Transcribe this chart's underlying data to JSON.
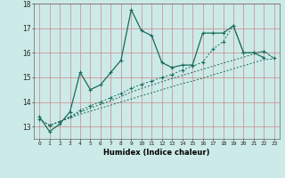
{
  "xlabel": "Humidex (Indice chaleur)",
  "bg_color": "#cceae8",
  "grid_color": "#cc8888",
  "line_color": "#1a6b5a",
  "xlim": [
    -0.5,
    23.5
  ],
  "ylim": [
    12.5,
    18.0
  ],
  "yticks": [
    13,
    14,
    15,
    16,
    17,
    18
  ],
  "xticks": [
    0,
    1,
    2,
    3,
    4,
    5,
    6,
    7,
    8,
    9,
    10,
    11,
    12,
    13,
    14,
    15,
    16,
    17,
    18,
    19,
    20,
    21,
    22,
    23
  ],
  "series": [
    {
      "x": [
        0,
        1,
        2,
        3,
        4,
        5,
        6,
        7,
        8,
        9,
        10,
        11,
        12,
        13,
        14,
        15,
        16,
        17,
        18,
        19,
        20,
        21,
        22
      ],
      "y": [
        13.4,
        12.8,
        13.1,
        13.6,
        15.2,
        14.5,
        14.7,
        15.2,
        15.7,
        17.75,
        16.9,
        16.7,
        15.6,
        15.4,
        15.5,
        15.5,
        16.8,
        16.8,
        16.8,
        17.1,
        16.0,
        16.0,
        15.8
      ],
      "style": "solid",
      "marker": true
    },
    {
      "x": [
        0,
        1,
        2,
        3,
        4,
        5,
        6,
        7,
        8,
        9,
        10,
        11,
        12,
        13,
        14,
        15,
        16,
        17,
        18,
        19,
        20,
        21,
        22,
        23
      ],
      "y": [
        13.3,
        13.05,
        13.2,
        13.35,
        13.5,
        13.62,
        13.75,
        13.87,
        14.0,
        14.12,
        14.25,
        14.37,
        14.5,
        14.62,
        14.75,
        14.85,
        14.97,
        15.1,
        15.22,
        15.35,
        15.47,
        15.6,
        15.72,
        15.75
      ],
      "style": "dotted",
      "marker": false
    },
    {
      "x": [
        0,
        1,
        2,
        3,
        4,
        5,
        6,
        7,
        8,
        9,
        10,
        11,
        12,
        13,
        14,
        15,
        16,
        17,
        18,
        19,
        20,
        21,
        22,
        23
      ],
      "y": [
        13.3,
        13.05,
        13.2,
        13.4,
        13.65,
        13.85,
        14.0,
        14.18,
        14.35,
        14.55,
        14.72,
        14.85,
        15.0,
        15.12,
        15.3,
        15.45,
        15.62,
        16.15,
        16.45,
        17.1,
        16.0,
        16.0,
        16.05,
        15.78
      ],
      "style": "dotted",
      "marker": true
    },
    {
      "x": [
        0,
        1,
        2,
        3,
        4,
        5,
        6,
        7,
        8,
        9,
        10,
        11,
        12,
        13,
        14,
        15,
        16,
        17,
        18,
        19,
        20,
        21,
        22,
        23
      ],
      "y": [
        13.3,
        13.05,
        13.2,
        13.38,
        13.58,
        13.75,
        13.9,
        14.05,
        14.22,
        14.4,
        14.55,
        14.68,
        14.82,
        14.95,
        15.08,
        15.2,
        15.33,
        15.45,
        15.58,
        15.7,
        15.82,
        15.95,
        16.08,
        15.75
      ],
      "style": "dotted",
      "marker": false
    }
  ]
}
